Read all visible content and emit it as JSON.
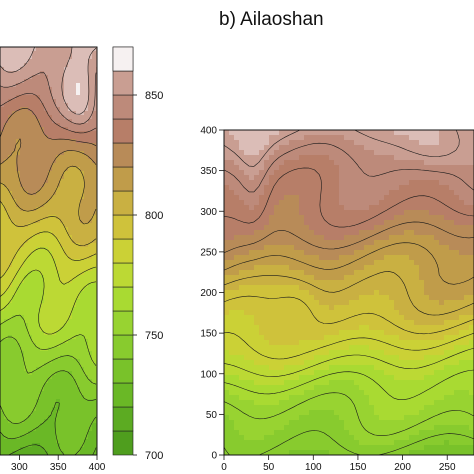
{
  "chart_data": [
    {
      "type": "heatmap",
      "subtype": "filled-contour",
      "panel": "a",
      "title": "",
      "x_ticks": [
        "300",
        "350",
        "400"
      ],
      "y_ticks": [],
      "xlim": [
        275,
        400
      ],
      "colorbar": {
        "range": [
          700,
          870
        ],
        "ticks": [
          "700",
          "750",
          "800",
          "850"
        ],
        "levels": [
          700,
          710,
          720,
          730,
          740,
          750,
          760,
          770,
          780,
          790,
          800,
          810,
          820,
          830,
          840,
          850,
          860,
          870
        ],
        "colors": [
          "#4f9e1e",
          "#5cab22",
          "#6ab826",
          "#79c22a",
          "#88cb2e",
          "#98d331",
          "#a9da32",
          "#bcd934",
          "#cbd136",
          "#cfc23b",
          "#c9b042",
          "#c09c4a",
          "#b88b58",
          "#b77e68",
          "#bd8a7a",
          "#c99e92",
          "#dbbdb7",
          "#f6f1f1"
        ]
      }
    },
    {
      "type": "heatmap",
      "subtype": "filled-contour",
      "panel": "b",
      "title": "b) Ailaoshan",
      "x_ticks": [
        "0",
        "50",
        "100",
        "150",
        "200",
        "250"
      ],
      "y_ticks": [
        "0",
        "50",
        "100",
        "150",
        "200",
        "250",
        "300",
        "350",
        "400"
      ],
      "xlim": [
        0,
        280
      ],
      "ylim": [
        0,
        400
      ],
      "color_scale": "green (low) to brown/white (high)"
    }
  ]
}
